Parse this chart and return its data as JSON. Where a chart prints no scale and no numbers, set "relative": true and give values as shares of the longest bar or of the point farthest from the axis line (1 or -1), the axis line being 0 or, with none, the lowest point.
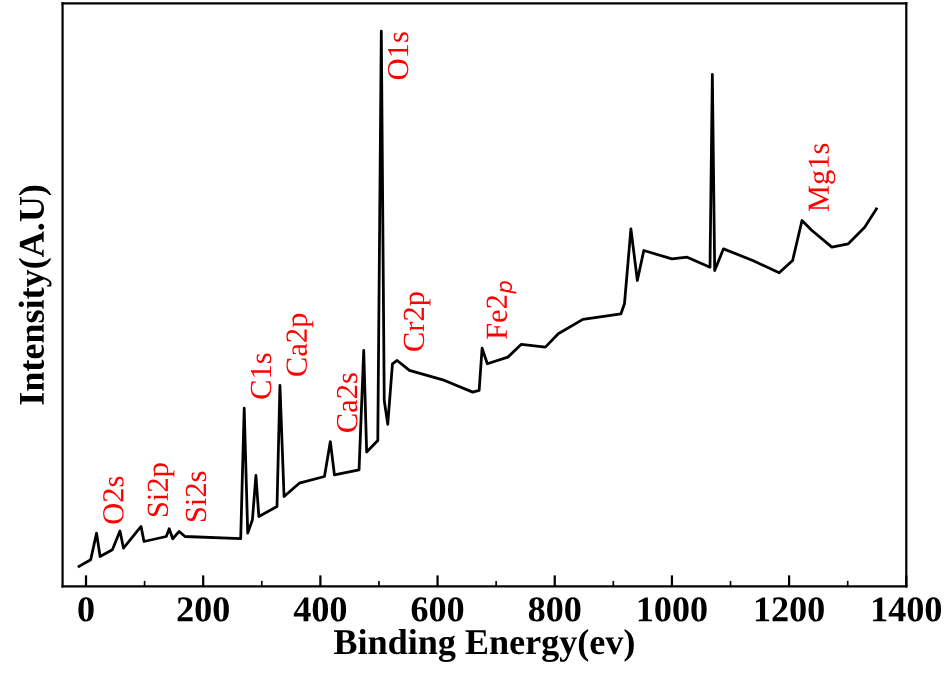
{
  "chart_data": {
    "type": "line",
    "xlabel": "Binding Energy(ev)",
    "ylabel": "Intensity(A.U)",
    "relative": true,
    "color": "#000000",
    "x": [
      -12,
      8,
      18,
      24,
      45,
      58,
      64,
      94,
      99,
      137,
      142,
      148,
      159,
      169,
      264,
      270,
      276,
      284,
      290,
      295,
      326,
      331,
      338,
      364,
      407,
      417,
      424,
      466,
      474,
      479,
      498,
      504,
      509,
      515,
      523,
      531,
      552,
      612,
      660,
      671,
      676,
      685,
      720,
      743,
      784,
      806,
      848,
      913,
      919,
      930,
      941,
      952,
      1000,
      1026,
      1065,
      1069,
      1073,
      1088,
      1138,
      1183,
      1206,
      1222,
      1239,
      1273,
      1301,
      1329,
      1349
    ],
    "values": [
      0.036,
      0.048,
      0.096,
      0.054,
      0.066,
      0.1,
      0.069,
      0.108,
      0.081,
      0.09,
      0.104,
      0.086,
      0.099,
      0.09,
      0.086,
      0.321,
      0.096,
      0.12,
      0.2,
      0.126,
      0.144,
      0.362,
      0.162,
      0.186,
      0.198,
      0.261,
      0.201,
      0.21,
      0.425,
      0.242,
      0.263,
      1.0,
      0.335,
      0.292,
      0.401,
      0.407,
      0.389,
      0.371,
      0.35,
      0.353,
      0.429,
      0.401,
      0.413,
      0.436,
      0.431,
      0.455,
      0.481,
      0.491,
      0.509,
      0.644,
      0.551,
      0.605,
      0.59,
      0.593,
      0.575,
      0.922,
      0.569,
      0.608,
      0.587,
      0.565,
      0.587,
      0.659,
      0.641,
      0.611,
      0.617,
      0.647,
      0.68
    ],
    "xlim": [
      -40,
      1400
    ],
    "xticks": [
      0,
      200,
      400,
      600,
      800,
      1000,
      1200,
      1400
    ],
    "grid": false,
    "legend": false,
    "annotations": [
      {
        "text": "O2s",
        "x": 18,
        "y": 0.096
      },
      {
        "text": "Si2p",
        "x": 94,
        "y": 0.108
      },
      {
        "text": "Si2s",
        "x": 159,
        "y": 0.099
      },
      {
        "text": "C1s",
        "x": 270,
        "y": 0.321
      },
      {
        "text": "Ca2p",
        "x": 331,
        "y": 0.362
      },
      {
        "text": "Ca2s",
        "x": 417,
        "y": 0.261
      },
      {
        "text": "O1s",
        "x": 504,
        "y": 1.0
      },
      {
        "text": "Cr2p",
        "x": 531,
        "y": 0.407
      },
      {
        "text": "Fe2$_{p}$",
        "x": 676,
        "y": 0.429
      },
      {
        "text": "Mg1s",
        "x": 1222,
        "y": 0.659
      }
    ]
  }
}
